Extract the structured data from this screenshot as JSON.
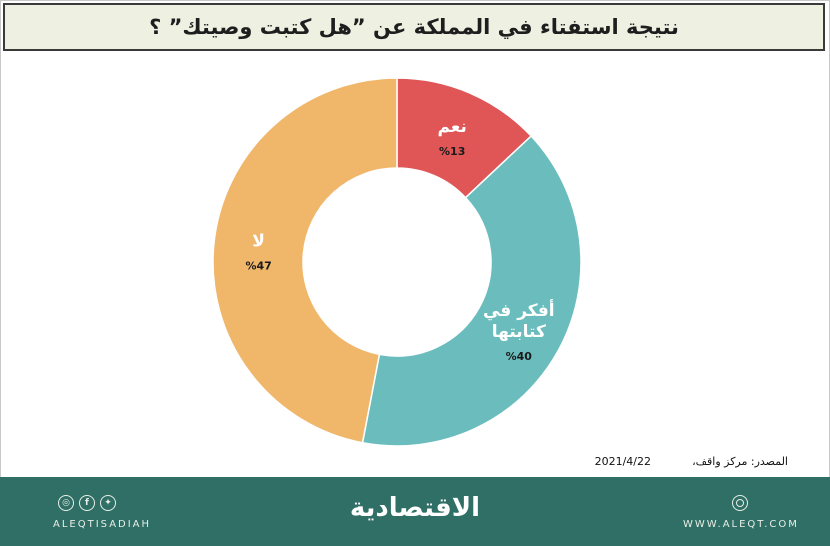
{
  "title": "نتيجة استفتاء في المملكة عن ”هل كتبت وصيتك” ؟",
  "source": {
    "label": "المصدر: مركز واقف،",
    "date": "2021/4/22"
  },
  "footer": {
    "brand": "الاقتصادية",
    "handle": "ALEQTISADIAH",
    "website": "WWW.ALEQT.COM",
    "social_icons": [
      "instagram-icon",
      "facebook-icon",
      "twitter-icon"
    ],
    "web_icon": "globe-icon",
    "background_color": "#2f6f66"
  },
  "chart_data": {
    "type": "pie",
    "variant": "donut",
    "slices": [
      {
        "label": "نعم",
        "value_label": "%13",
        "value": 13,
        "color": "#e05555"
      },
      {
        "label": "أفكر في كتابتها",
        "value_label": "%40",
        "value": 40,
        "color": "#6bbdbd"
      },
      {
        "label": "لا",
        "value_label": "%47",
        "value": 47,
        "color": "#f0b66a"
      }
    ],
    "start": "top",
    "direction": "clockwise"
  }
}
